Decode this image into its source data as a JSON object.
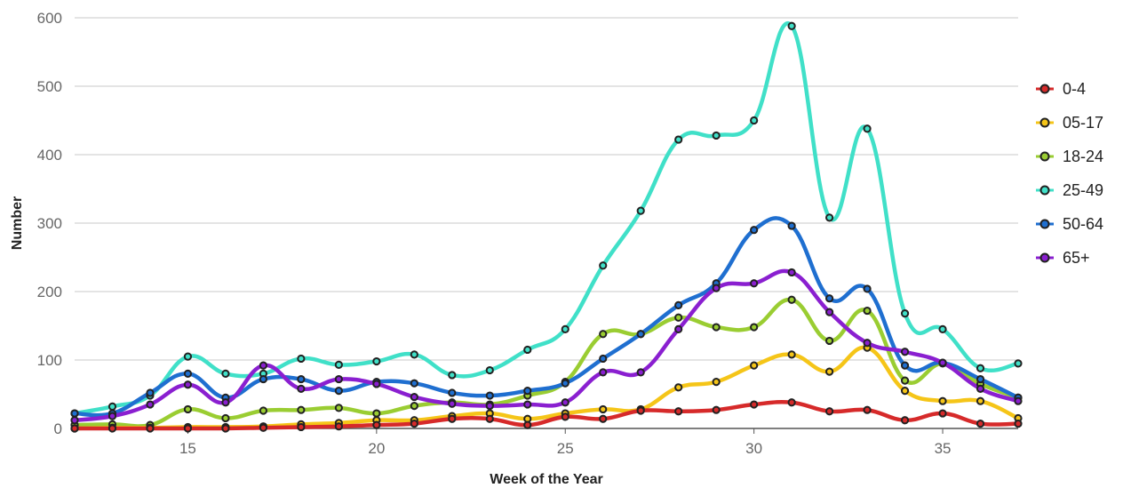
{
  "chart_data": {
    "type": "line",
    "xlabel": "Week of the Year",
    "ylabel": "Number",
    "xlim": [
      12,
      37
    ],
    "ylim": [
      0,
      600
    ],
    "x_ticks": [
      15,
      20,
      25,
      30,
      35
    ],
    "y_ticks": [
      0,
      100,
      200,
      300,
      400,
      500,
      600
    ],
    "grid": "horizontal",
    "legend_position": "right",
    "x": [
      12,
      13,
      14,
      15,
      16,
      17,
      18,
      19,
      20,
      21,
      22,
      23,
      24,
      25,
      26,
      27,
      28,
      29,
      30,
      31,
      32,
      33,
      34,
      35,
      36,
      37
    ],
    "series": [
      {
        "name": "25-49",
        "color": "#40e0c8",
        "values": [
          22,
          32,
          48,
          105,
          80,
          80,
          102,
          93,
          98,
          108,
          78,
          85,
          115,
          145,
          238,
          318,
          422,
          428,
          450,
          588,
          308,
          438,
          168,
          145,
          88,
          95
        ]
      },
      {
        "name": "18-24",
        "color": "#9acd32",
        "values": [
          5,
          6,
          5,
          28,
          15,
          26,
          27,
          30,
          22,
          33,
          38,
          35,
          48,
          68,
          138,
          138,
          162,
          148,
          148,
          188,
          128,
          172,
          70,
          95,
          65,
          45
        ]
      },
      {
        "name": "05-17",
        "color": "#f5c518",
        "values": [
          0,
          1,
          1,
          2,
          2,
          3,
          6,
          8,
          12,
          12,
          18,
          22,
          14,
          22,
          28,
          28,
          60,
          68,
          92,
          108,
          83,
          118,
          55,
          40,
          40,
          15
        ]
      },
      {
        "name": "0-4",
        "color": "#d62a2a",
        "values": [
          0,
          0,
          0,
          0,
          0,
          1,
          2,
          3,
          5,
          7,
          14,
          14,
          5,
          17,
          14,
          26,
          25,
          27,
          35,
          38,
          25,
          27,
          12,
          22,
          7,
          7
        ]
      },
      {
        "name": "50-64",
        "color": "#1f6fd0",
        "values": [
          22,
          22,
          52,
          80,
          45,
          72,
          72,
          55,
          68,
          66,
          52,
          48,
          55,
          66,
          102,
          138,
          180,
          212,
          290,
          296,
          190,
          204,
          92,
          96,
          72,
          45
        ]
      },
      {
        "name": "65+",
        "color": "#8a1fd0",
        "values": [
          12,
          18,
          35,
          64,
          38,
          92,
          58,
          72,
          65,
          46,
          36,
          33,
          35,
          38,
          82,
          82,
          145,
          205,
          212,
          228,
          170,
          125,
          112,
          96,
          58,
          40
        ]
      }
    ],
    "legend_order": [
      "0-4",
      "05-17",
      "18-24",
      "25-49",
      "50-64",
      "65+"
    ]
  }
}
